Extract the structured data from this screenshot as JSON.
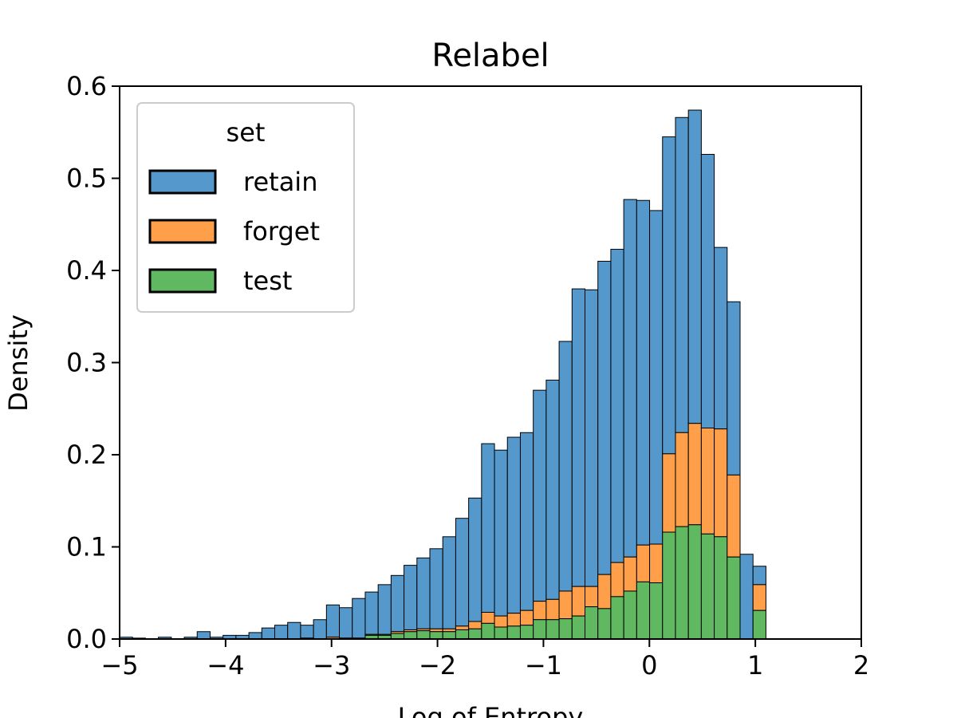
{
  "chart_data": {
    "type": "bar",
    "stacked": true,
    "title": "Relabel",
    "xlabel": "Log of Entropy",
    "ylabel": "Density",
    "xlim": [
      -5,
      2
    ],
    "ylim": [
      0,
      0.6
    ],
    "xticks": [
      "−5",
      "−4",
      "−3",
      "−2",
      "−1",
      "0",
      "1",
      "2"
    ],
    "yticks": [
      "0.0",
      "0.1",
      "0.2",
      "0.3",
      "0.4",
      "0.5",
      "0.6"
    ],
    "grid": false,
    "legend": {
      "title": "set",
      "position": "top-left"
    },
    "bin_start": -5.0,
    "bin_width": 0.122,
    "series": [
      {
        "name": "retain",
        "color": "#5599cc",
        "values": [
          0.002,
          0.001,
          0.0,
          0.002,
          0.0,
          0.002,
          0.008,
          0.002,
          0.004,
          0.004,
          0.007,
          0.012,
          0.015,
          0.018,
          0.014,
          0.021,
          0.035,
          0.033,
          0.043,
          0.046,
          0.054,
          0.061,
          0.07,
          0.077,
          0.087,
          0.1,
          0.117,
          0.134,
          0.183,
          0.18,
          0.191,
          0.193,
          0.229,
          0.238,
          0.271,
          0.323,
          0.322,
          0.34,
          0.34,
          0.388,
          0.374,
          0.362,
          0.344,
          0.342,
          0.34,
          0.297,
          0.197,
          0.188,
          0.092,
          0.02
        ]
      },
      {
        "name": "forget",
        "color": "#ff9f4a",
        "values": [
          0.0,
          0.0,
          0.0,
          0.0,
          0.0,
          0.0,
          0.0,
          0.0,
          0.0,
          0.0,
          0.0,
          0.0,
          0.0,
          0.0,
          0.001,
          0.0,
          0.002,
          0.001,
          0.001,
          0.001,
          0.001,
          0.002,
          0.002,
          0.002,
          0.003,
          0.003,
          0.004,
          0.008,
          0.012,
          0.012,
          0.014,
          0.016,
          0.02,
          0.022,
          0.03,
          0.032,
          0.022,
          0.037,
          0.037,
          0.037,
          0.04,
          0.042,
          0.085,
          0.102,
          0.11,
          0.115,
          0.117,
          0.089,
          0.0,
          0.028
        ]
      },
      {
        "name": "test",
        "color": "#60b860",
        "values": [
          0.0,
          0.0,
          0.0,
          0.0,
          0.0,
          0.0,
          0.0,
          0.0,
          0.0,
          0.0,
          0.0,
          0.0,
          0.0,
          0.0,
          0.0,
          0.0,
          0.0,
          0.0,
          0.0,
          0.004,
          0.004,
          0.006,
          0.008,
          0.009,
          0.008,
          0.008,
          0.01,
          0.011,
          0.017,
          0.013,
          0.014,
          0.015,
          0.021,
          0.021,
          0.022,
          0.025,
          0.035,
          0.033,
          0.046,
          0.052,
          0.062,
          0.061,
          0.116,
          0.122,
          0.124,
          0.114,
          0.111,
          0.089,
          0.0,
          0.031
        ]
      }
    ]
  }
}
